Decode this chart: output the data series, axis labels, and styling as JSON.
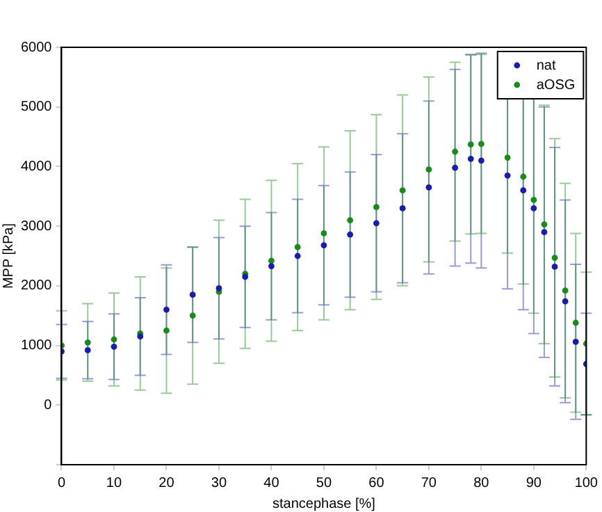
{
  "chart_data": {
    "type": "scatter",
    "xlabel": "stancephase [%]",
    "ylabel": "MPP [kPa]",
    "x": [
      0,
      5,
      10,
      15,
      20,
      25,
      30,
      35,
      40,
      45,
      50,
      55,
      60,
      65,
      70,
      75,
      78,
      80,
      85,
      88,
      90,
      92,
      94,
      96,
      98,
      100
    ],
    "series": [
      {
        "name": "nat",
        "color": "#1c1ca8",
        "values": [
          900,
          920,
          980,
          1150,
          1600,
          1850,
          1960,
          2150,
          2330,
          2500,
          2680,
          2860,
          3050,
          3300,
          3650,
          3980,
          4130,
          4100,
          3850,
          3600,
          3300,
          2900,
          2320,
          1740,
          1060,
          690
        ],
        "errors": [
          450,
          480,
          550,
          650,
          750,
          800,
          850,
          850,
          900,
          950,
          1000,
          1050,
          1150,
          1250,
          1450,
          1650,
          1750,
          1800,
          1900,
          2000,
          2100,
          2100,
          2000,
          1700,
          1300,
          850
        ]
      },
      {
        "name": "aOSG",
        "color": "#1a8a1a",
        "values": [
          1000,
          1050,
          1100,
          1200,
          1250,
          1500,
          1900,
          2200,
          2420,
          2650,
          2880,
          3100,
          3320,
          3600,
          3950,
          4250,
          4370,
          4380,
          4150,
          3830,
          3440,
          3030,
          2470,
          1920,
          1380,
          1030
        ],
        "errors": [
          580,
          650,
          780,
          950,
          1050,
          1150,
          1200,
          1250,
          1350,
          1400,
          1450,
          1500,
          1550,
          1600,
          1550,
          1500,
          1500,
          1500,
          1600,
          1800,
          1900,
          2000,
          2000,
          1800,
          1500,
          1200
        ]
      }
    ],
    "xlim": [
      0,
      100
    ],
    "xticks": [
      0,
      10,
      20,
      30,
      40,
      50,
      60,
      70,
      80,
      90,
      100
    ],
    "ylim": [
      -1000,
      6000
    ],
    "yticks": [
      {
        "value": -1000,
        "label": null
      },
      0,
      1000,
      2000,
      3000,
      4000,
      5000,
      6000
    ],
    "grid": false,
    "legend": "top right",
    "marker": "circle"
  }
}
